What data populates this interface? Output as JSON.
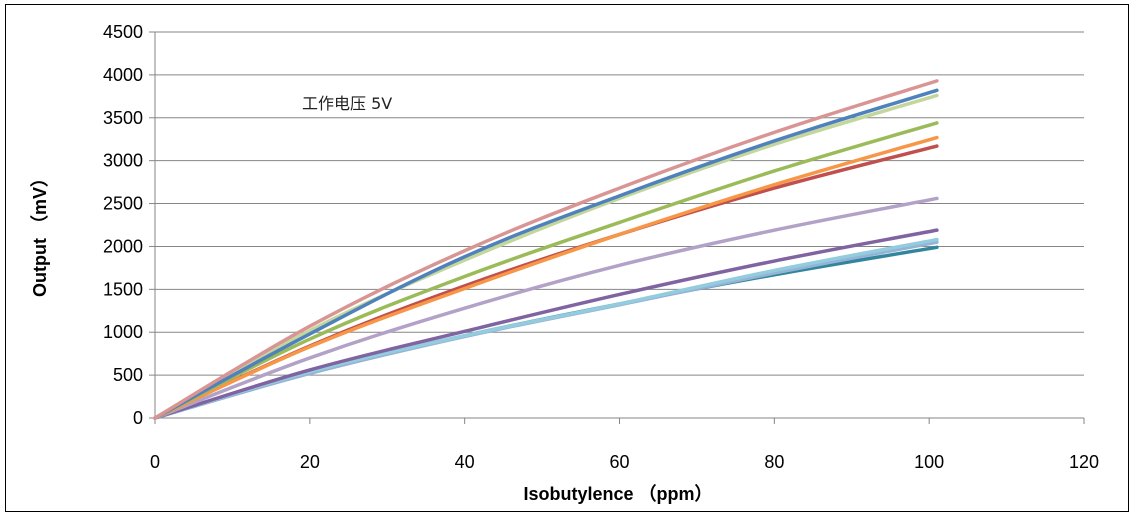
{
  "chart_data": {
    "type": "line",
    "xlabel": "Isobutylence （ppm）",
    "ylabel": "Output （mV）",
    "annotation": "工作电压 5V",
    "xlim": [
      0,
      120
    ],
    "ylim": [
      0,
      4500
    ],
    "x_ticks": [
      0,
      20,
      40,
      60,
      80,
      100,
      120
    ],
    "y_ticks": [
      0,
      500,
      1000,
      1500,
      2000,
      2500,
      3000,
      3500,
      4000,
      4500
    ],
    "grid": "horizontal",
    "x": [
      0,
      20,
      40,
      60,
      80,
      101
    ],
    "series": [
      {
        "color": "#d99594",
        "values": [
          0,
          1070,
          1950,
          2680,
          3330,
          3930
        ]
      },
      {
        "color": "#4f81bd",
        "values": [
          0,
          980,
          1880,
          2590,
          3230,
          3820
        ]
      },
      {
        "color": "#c3d69b",
        "values": [
          0,
          1020,
          1840,
          2560,
          3190,
          3760
        ]
      },
      {
        "color": "#9bbb59",
        "values": [
          0,
          920,
          1650,
          2280,
          2880,
          3440
        ]
      },
      {
        "color": "#f79646",
        "values": [
          0,
          830,
          1510,
          2140,
          2720,
          3270
        ]
      },
      {
        "color": "#c0504d",
        "values": [
          0,
          840,
          1540,
          2140,
          2680,
          3170
        ]
      },
      {
        "color": "#b3a2c7",
        "values": [
          0,
          700,
          1280,
          1780,
          2190,
          2560
        ]
      },
      {
        "color": "#8064a2",
        "values": [
          0,
          560,
          1010,
          1440,
          1830,
          2190
        ]
      },
      {
        "color": "#93cddd",
        "values": [
          0,
          540,
          960,
          1330,
          1720,
          2080
        ]
      },
      {
        "color": "#95b3d7",
        "values": [
          0,
          520,
          950,
          1320,
          1690,
          2050
        ]
      },
      {
        "color": "#31859c",
        "values": [
          0,
          530,
          960,
          1330,
          1670,
          1990
        ]
      }
    ]
  }
}
